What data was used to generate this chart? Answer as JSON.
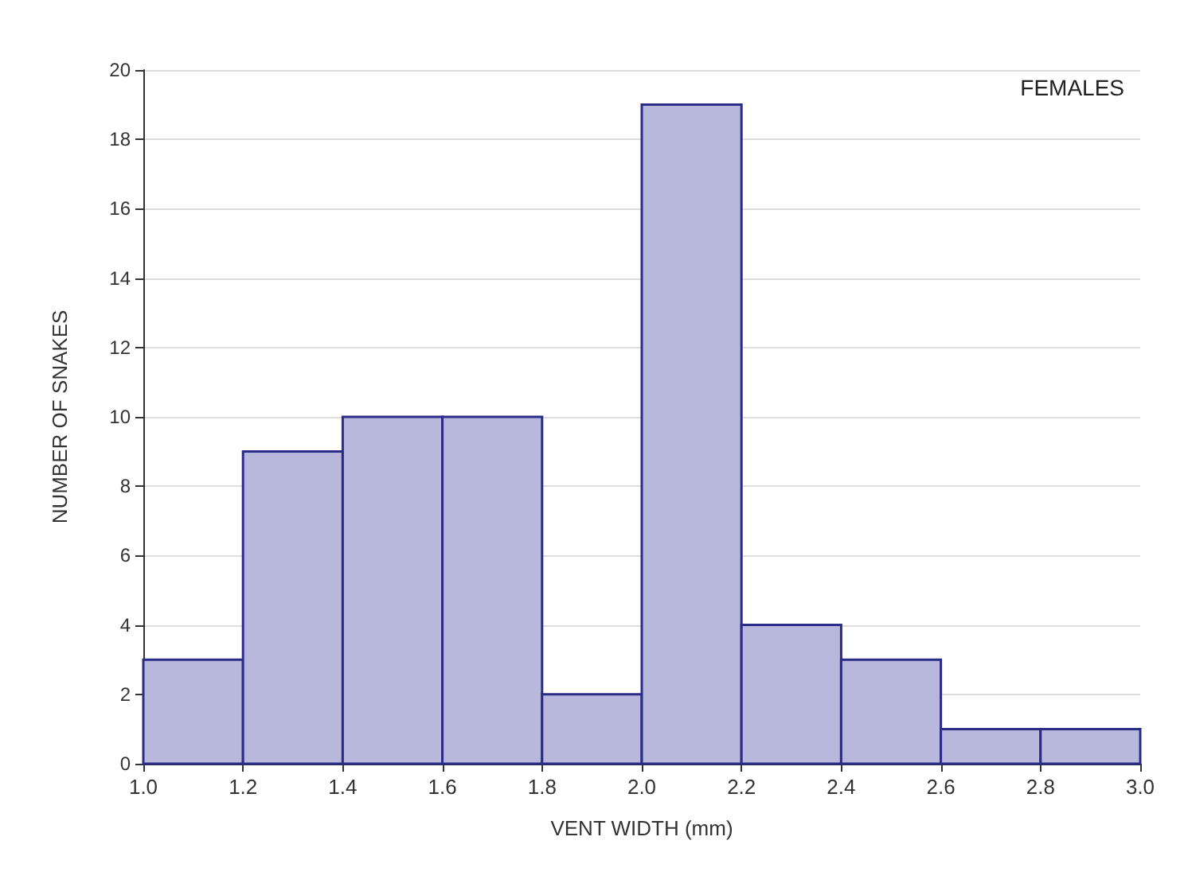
{
  "chart_data": {
    "type": "histogram",
    "xlabel": "VENT WIDTH (mm)",
    "ylabel": "NUMBER OF SNAKES",
    "annotations": [
      "FEMALES"
    ],
    "bins": [
      1.0,
      1.2,
      1.4,
      1.6,
      1.8,
      2.0,
      2.2,
      2.4,
      2.6,
      2.8,
      3.0
    ],
    "values": [
      3,
      9,
      10,
      10,
      2,
      19,
      4,
      3,
      1,
      1
    ],
    "color": "#b8b8dc",
    "xlim": [
      1.0,
      3.0
    ],
    "xticks": [
      {
        "value": 1.0,
        "label": "1.0"
      },
      {
        "value": 1.2,
        "label": "1.2"
      },
      {
        "value": 1.4,
        "label": "1.4"
      },
      {
        "value": 1.6,
        "label": "1.6"
      },
      {
        "value": 1.8,
        "label": "1.8"
      },
      {
        "value": 2.0,
        "label": "2.0"
      },
      {
        "value": 2.2,
        "label": "2.2"
      },
      {
        "value": 2.4,
        "label": "2.4"
      },
      {
        "value": 2.6,
        "label": "2.6"
      },
      {
        "value": 2.8,
        "label": "2.8"
      },
      {
        "value": 3.0,
        "label": "3.0"
      }
    ],
    "ylim": [
      0,
      20
    ],
    "yticks": [
      0,
      2,
      4,
      6,
      8,
      10,
      12,
      14,
      16,
      18,
      20
    ],
    "grid": "y"
  }
}
